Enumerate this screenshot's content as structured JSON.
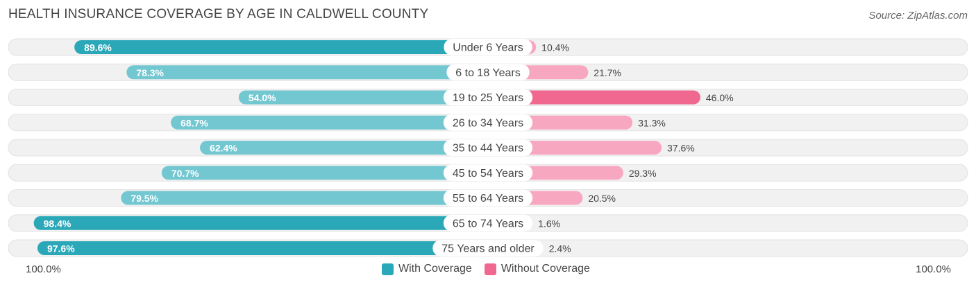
{
  "title": "HEALTH INSURANCE COVERAGE BY AGE IN CALDWELL COUNTY",
  "source": "Source: ZipAtlas.com",
  "colors": {
    "with_dark": "#2aa8b8",
    "with_light": "#72c7d1",
    "without_dark": "#f0678f",
    "without_light": "#f7a8c0",
    "track": "#f1f1f1"
  },
  "legend": {
    "with_label": "With Coverage",
    "without_label": "Without Coverage"
  },
  "axis": {
    "left_label": "100.0%",
    "right_label": "100.0%"
  },
  "chart_data": {
    "type": "bar",
    "orientation": "horizontal-diverging",
    "title": "HEALTH INSURANCE COVERAGE BY AGE IN CALDWELL COUNTY",
    "categories": [
      "Under 6 Years",
      "6 to 18 Years",
      "19 to 25 Years",
      "26 to 34 Years",
      "35 to 44 Years",
      "45 to 54 Years",
      "55 to 64 Years",
      "65 to 74 Years",
      "75 Years and older"
    ],
    "series": [
      {
        "name": "With Coverage",
        "values": [
          89.6,
          78.3,
          54.0,
          68.7,
          62.4,
          70.7,
          79.5,
          98.4,
          97.6
        ],
        "labels": [
          "89.6%",
          "78.3%",
          "54.0%",
          "68.7%",
          "62.4%",
          "70.7%",
          "79.5%",
          "98.4%",
          "97.6%"
        ]
      },
      {
        "name": "Without Coverage",
        "values": [
          10.4,
          21.7,
          46.0,
          31.3,
          37.6,
          29.3,
          20.5,
          1.6,
          2.4
        ],
        "labels": [
          "10.4%",
          "21.7%",
          "46.0%",
          "31.3%",
          "37.6%",
          "29.3%",
          "20.5%",
          "1.6%",
          "2.4%"
        ]
      }
    ],
    "xlim": [
      -100,
      100
    ],
    "legend_position": "bottom-center"
  }
}
